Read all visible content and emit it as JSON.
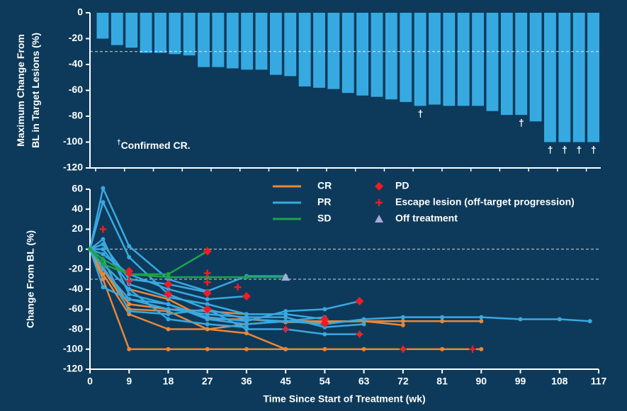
{
  "chart_data": [
    {
      "type": "bar",
      "y_label": [
        "Maximum Change From",
        "BL in Target Lesions (%)"
      ],
      "values": [
        -20,
        -25,
        -27,
        -31,
        -31,
        -32,
        -33,
        -42,
        -42,
        -43,
        -44,
        -44,
        -48,
        -49,
        -57,
        -58,
        -59,
        -62,
        -64,
        -65,
        -67,
        -69,
        -72,
        -71,
        -72,
        -72,
        -72,
        -76,
        -79,
        -79,
        -84,
        -100,
        -100,
        -100,
        -100
      ],
      "value_labels": [
        null,
        null,
        null,
        null,
        null,
        null,
        null,
        null,
        null,
        null,
        null,
        null,
        null,
        null,
        null,
        null,
        null,
        null,
        null,
        null,
        null,
        null,
        "†",
        null,
        null,
        null,
        null,
        null,
        null,
        "†",
        null,
        "†",
        "†",
        "†",
        "†"
      ],
      "color": "#37a9e1",
      "ylim": [
        -120,
        0
      ],
      "yticks": [
        0,
        -20,
        -40,
        -60,
        -80,
        -100,
        -120
      ],
      "reference_lines": [
        -30
      ],
      "footnote": {
        "mark": "†",
        "text": "Confirmed CR."
      }
    },
    {
      "type": "line",
      "y_label": "Change From BL (%)",
      "x_label": "Time Since Start of Treatment (wk)",
      "xlim": [
        0,
        117
      ],
      "xticks": [
        0,
        9,
        18,
        27,
        36,
        45,
        54,
        63,
        72,
        81,
        90,
        99,
        108,
        117
      ],
      "ylim": [
        -120,
        60
      ],
      "yticks": [
        60,
        40,
        20,
        0,
        -20,
        -40,
        -60,
        -80,
        -100,
        -120
      ],
      "reference_lines": [
        0,
        -30
      ],
      "groups": [
        {
          "name": "CR",
          "color": "#e8873a",
          "patients": [
            {
              "x": [
                0,
                3,
                9,
                18,
                27,
                36,
                45,
                54,
                63,
                72,
                81,
                90
              ],
              "values": [
                0,
                -30,
                -100,
                -100,
                -100,
                -100,
                -100,
                -100,
                -100,
                -100,
                -100,
                -100
              ]
            },
            {
              "x": [
                0,
                3,
                9,
                18,
                27,
                36,
                45
              ],
              "values": [
                0,
                -25,
                -65,
                -80,
                -80,
                -84,
                -100
              ]
            },
            {
              "x": [
                0,
                3,
                9,
                18,
                27,
                36,
                45,
                54,
                63,
                72,
                81,
                90
              ],
              "values": [
                0,
                -20,
                -60,
                -62,
                -80,
                -75,
                -72,
                -72,
                -72,
                -72,
                -72,
                -72
              ]
            },
            {
              "x": [
                0,
                3,
                9,
                18,
                27,
                36,
                45,
                54,
                63,
                72
              ],
              "values": [
                0,
                -15,
                -40,
                -50,
                -70,
                -70,
                -73,
                -73,
                -72,
                -76
              ]
            },
            {
              "x": [
                0,
                9,
                18,
                27,
                36
              ],
              "values": [
                0,
                -55,
                -60,
                -62,
                -65
              ]
            }
          ]
        },
        {
          "name": "PR",
          "color": "#3aa8e0",
          "patients": [
            {
              "x": [
                0,
                3,
                9,
                18,
                27,
                36,
                45
              ],
              "values": [
                0,
                61,
                3,
                -30,
                -42,
                -27,
                -27
              ]
            },
            {
              "x": [
                0,
                3,
                9,
                18,
                27,
                36,
                45,
                54,
                63,
                72,
                81,
                90,
                99,
                108,
                115
              ],
              "values": [
                0,
                47,
                -8,
                -45,
                -60,
                -70,
                -72,
                -75,
                -70,
                -68,
                -68,
                -68,
                -70,
                -70,
                -72
              ]
            },
            {
              "x": [
                0,
                3,
                9,
                18,
                27,
                36,
                45,
                54,
                63
              ],
              "values": [
                0,
                -38,
                -50,
                -60,
                -65,
                -68,
                -68,
                -78,
                -75
              ]
            },
            {
              "x": [
                0,
                3,
                9,
                18,
                27,
                36,
                45,
                54,
                62
              ],
              "values": [
                0,
                10,
                -45,
                -55,
                -68,
                -72,
                -62,
                -60,
                -52
              ]
            },
            {
              "x": [
                0,
                3,
                9,
                18,
                27,
                36,
                45,
                54,
                62
              ],
              "values": [
                0,
                -10,
                -62,
                -65,
                -60,
                -80,
                -80,
                -85,
                -85
              ]
            },
            {
              "x": [
                0,
                3,
                9,
                18,
                27
              ],
              "values": [
                0,
                5,
                -30,
                -35,
                -43
              ]
            },
            {
              "x": [
                0,
                3,
                9,
                18,
                27,
                36
              ],
              "values": [
                0,
                -5,
                -25,
                -40,
                -50,
                -47
              ]
            },
            {
              "x": [
                0,
                3,
                9,
                18,
                27,
                36,
                45,
                54
              ],
              "values": [
                0,
                -20,
                -50,
                -55,
                -70,
                -75,
                -72,
                -68
              ]
            },
            {
              "x": [
                0,
                3,
                9,
                18,
                27,
                36,
                45,
                54
              ],
              "values": [
                0,
                0,
                -35,
                -48,
                -55,
                -65,
                -65,
                -70
              ]
            },
            {
              "x": [
                0,
                3,
                9,
                18,
                27,
                36
              ],
              "values": [
                0,
                -15,
                -40,
                -70,
                -75,
                -78
              ]
            }
          ]
        },
        {
          "name": "SD",
          "color": "#1fa34a",
          "patients": [
            {
              "x": [
                0,
                3,
                9,
                18,
                27
              ],
              "values": [
                0,
                -10,
                -25,
                -25,
                -2
              ]
            },
            {
              "x": [
                0,
                3,
                9,
                18,
                27,
                36,
                45
              ],
              "values": [
                0,
                -15,
                -25,
                -28,
                -28,
                -28,
                -28
              ]
            }
          ]
        }
      ],
      "events": [
        {
          "name": "PD",
          "symbol": "diamond",
          "color": "#ee1c25",
          "x": [
            9,
            18,
            18,
            27,
            27,
            27,
            36,
            54,
            54,
            62
          ],
          "values": [
            -22,
            -35,
            -45,
            -2,
            -44,
            -60,
            -47,
            -70,
            -74,
            -52
          ]
        },
        {
          "name": "Escape lesion (off-target progression)",
          "symbol": "plus",
          "color": "#ee1c25",
          "x": [
            3,
            9,
            9,
            18,
            27,
            27,
            34,
            45,
            62,
            72,
            88
          ],
          "values": [
            20,
            -25,
            -32,
            -45,
            -24,
            -33,
            -38,
            -80,
            -85,
            -100,
            -100
          ]
        },
        {
          "name": "Off treatment",
          "symbol": "triangle",
          "color": "#a7a9d6",
          "x": [
            45
          ],
          "values": [
            -28
          ]
        }
      ]
    }
  ]
}
